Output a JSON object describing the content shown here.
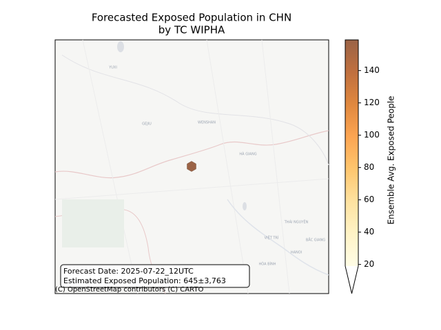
{
  "chart_data": {
    "type": "map",
    "title": [
      "Forecasted Exposed Population in CHN",
      "by TC WIPHA"
    ],
    "colorbar": {
      "label": "Ensemble Avg. Exposed People",
      "lim": [
        19,
        159
      ],
      "ticks": [
        20,
        40,
        60,
        80,
        100,
        120,
        140
      ],
      "extend": "min",
      "colors": [
        "#fffde6",
        "#fff3c6",
        "#fee2a0",
        "#fec66e",
        "#fca552",
        "#e0883f",
        "#c0703f",
        "#9b6346"
      ]
    },
    "hexagons": [
      {
        "value": 159
      }
    ],
    "annotation": [
      "Forecast Date: 2025-07-22_12UTC",
      "Estimated Exposed Population: 645±3,763"
    ],
    "attribution": "(C) OpenStreetMap contributors (C) CARTO",
    "place_labels": [
      "YUXI",
      "GEJIU",
      "WENSHAN",
      "HÀ GIANG",
      "THÁI NGUYÊN",
      "VIỆT TRÌ",
      "BẮC GIANG",
      "HANOI",
      "HÒA BÌNH"
    ]
  }
}
